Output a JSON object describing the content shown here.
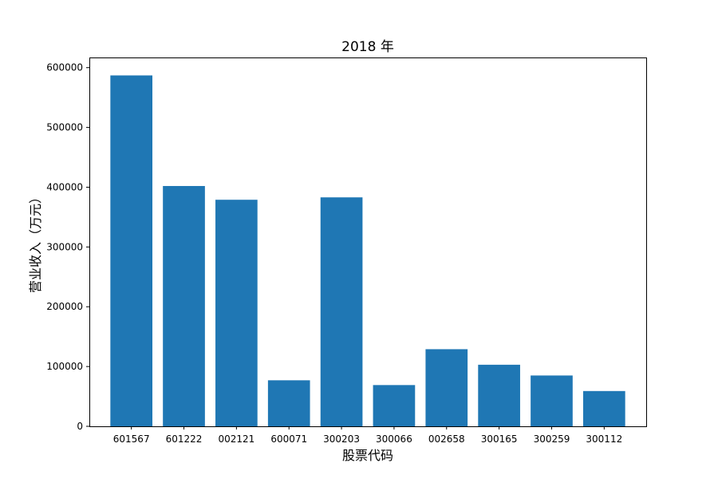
{
  "chart_data": {
    "type": "bar",
    "title": "2018 年",
    "xlabel": "股票代码",
    "ylabel": "营业收入（万元）",
    "categories": [
      "601567",
      "601222",
      "002121",
      "600071",
      "300203",
      "300066",
      "002658",
      "300165",
      "300259",
      "300112"
    ],
    "values": [
      587000,
      402000,
      379000,
      77000,
      383000,
      69000,
      129000,
      103000,
      85000,
      59000
    ],
    "ylim": [
      0,
      617000
    ],
    "yticks": [
      0,
      100000,
      200000,
      300000,
      400000,
      500000,
      600000
    ],
    "color": "#1f77b4",
    "grid": false,
    "legend": "none"
  }
}
